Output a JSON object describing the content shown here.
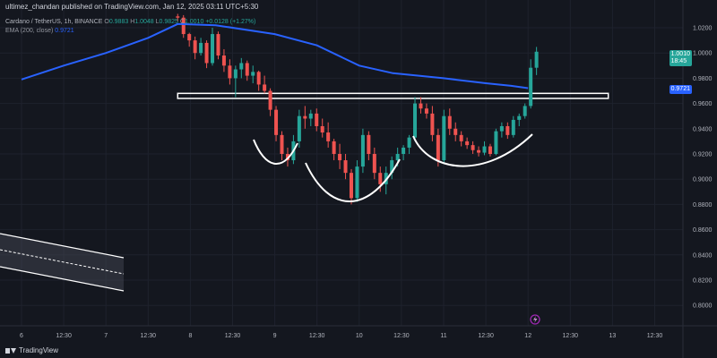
{
  "header": {
    "credit": "ultimez_chandan published on TradingView.com, Jan 12, 2025 03:11 UTC+5:30",
    "symbol_line": "Cardano / TetherUS, 1h, BINANCE",
    "ohlc": [
      {
        "k": "O",
        "v": "0.9883"
      },
      {
        "k": "H",
        "v": "1.0048"
      },
      {
        "k": "L",
        "v": "0.9825"
      },
      {
        "k": "C",
        "v": "1.0010"
      },
      {
        "k": "",
        "v": "+0.0128 (+1.27%)"
      }
    ],
    "ema_label": "EMA (200, close)",
    "ema_value": "0.9721"
  },
  "footer": {
    "brand": "TradingView"
  },
  "price_tags": {
    "last_price": "1.0010",
    "countdown": "18:45",
    "ema_price": "0.9721"
  },
  "colors": {
    "background": "#14171f",
    "up": "#26a69a",
    "down": "#ef5350",
    "ema": "#2962ff",
    "annotation": "#ffffff"
  },
  "icons": [
    "tradingview-logo-icon",
    "lightning-event-icon"
  ],
  "chart_data": {
    "type": "candlestick",
    "x_tick_labels": [
      "6",
      "12:30",
      "7",
      "12:30",
      "8",
      "12:30",
      "9",
      "12:30",
      "10",
      "12:30",
      "11",
      "12:30",
      "12",
      "12:30",
      "13",
      "12:30"
    ],
    "y_tick_labels": [
      "1.0200",
      "1.0000",
      "0.9800",
      "0.9600",
      "0.9400",
      "0.9200",
      "0.9000",
      "0.8800",
      "0.8600",
      "0.8400",
      "0.8200",
      "0.8000"
    ],
    "ylim": [
      0.795,
      1.033
    ],
    "grid": true,
    "candles": [
      [
        1.029,
        1.031,
        1.025,
        1.028
      ],
      [
        1.028,
        1.03,
        1.012,
        1.015
      ],
      [
        1.015,
        1.016,
        1.005,
        1.01
      ],
      [
        1.01,
        1.013,
        0.995,
        1.0
      ],
      [
        1.0,
        1.012,
        0.998,
        1.008
      ],
      [
        1.008,
        1.01,
        0.988,
        0.992
      ],
      [
        0.992,
        1.02,
        0.99,
        1.015
      ],
      [
        1.015,
        1.017,
        0.995,
        0.998
      ],
      [
        0.998,
        1.003,
        0.985,
        0.99
      ],
      [
        0.99,
        0.995,
        0.975,
        0.98
      ],
      [
        0.98,
        0.99,
        0.965,
        0.987
      ],
      [
        0.987,
        0.996,
        0.98,
        0.992
      ],
      [
        0.992,
        0.994,
        0.978,
        0.982
      ],
      [
        0.982,
        0.99,
        0.976,
        0.985
      ],
      [
        0.985,
        0.986,
        0.97,
        0.975
      ],
      [
        0.975,
        0.982,
        0.968,
        0.97
      ],
      [
        0.97,
        0.972,
        0.95,
        0.955
      ],
      [
        0.955,
        0.958,
        0.93,
        0.935
      ],
      [
        0.935,
        0.938,
        0.915,
        0.92
      ],
      [
        0.92,
        0.925,
        0.91,
        0.915
      ],
      [
        0.915,
        0.935,
        0.912,
        0.93
      ],
      [
        0.93,
        0.955,
        0.925,
        0.95
      ],
      [
        0.95,
        0.958,
        0.94,
        0.948
      ],
      [
        0.948,
        0.955,
        0.942,
        0.952
      ],
      [
        0.952,
        0.956,
        0.938,
        0.942
      ],
      [
        0.942,
        0.948,
        0.933,
        0.937
      ],
      [
        0.937,
        0.945,
        0.925,
        0.93
      ],
      [
        0.93,
        0.932,
        0.915,
        0.92
      ],
      [
        0.92,
        0.928,
        0.908,
        0.915
      ],
      [
        0.915,
        0.92,
        0.9,
        0.905
      ],
      [
        0.905,
        0.908,
        0.88,
        0.885
      ],
      [
        0.885,
        0.915,
        0.882,
        0.91
      ],
      [
        0.91,
        0.94,
        0.905,
        0.935
      ],
      [
        0.935,
        0.938,
        0.915,
        0.92
      ],
      [
        0.92,
        0.925,
        0.9,
        0.905
      ],
      [
        0.905,
        0.91,
        0.89,
        0.896
      ],
      [
        0.896,
        0.91,
        0.888,
        0.905
      ],
      [
        0.905,
        0.918,
        0.9,
        0.915
      ],
      [
        0.915,
        0.925,
        0.91,
        0.92
      ],
      [
        0.92,
        0.927,
        0.915,
        0.925
      ],
      [
        0.925,
        0.935,
        0.92,
        0.933
      ],
      [
        0.933,
        0.965,
        0.93,
        0.96
      ],
      [
        0.96,
        0.965,
        0.952,
        0.956
      ],
      [
        0.956,
        0.96,
        0.948,
        0.952
      ],
      [
        0.952,
        0.958,
        0.93,
        0.935
      ],
      [
        0.935,
        0.94,
        0.91,
        0.915
      ],
      [
        0.915,
        0.955,
        0.912,
        0.95
      ],
      [
        0.95,
        0.956,
        0.935,
        0.94
      ],
      [
        0.94,
        0.945,
        0.93,
        0.935
      ],
      [
        0.935,
        0.938,
        0.926,
        0.93
      ],
      [
        0.93,
        0.933,
        0.924,
        0.927
      ],
      [
        0.927,
        0.93,
        0.92,
        0.923
      ],
      [
        0.923,
        0.926,
        0.918,
        0.921
      ],
      [
        0.921,
        0.93,
        0.919,
        0.926
      ],
      [
        0.926,
        0.928,
        0.918,
        0.92
      ],
      [
        0.92,
        0.94,
        0.919,
        0.938
      ],
      [
        0.938,
        0.945,
        0.933,
        0.942
      ],
      [
        0.942,
        0.945,
        0.932,
        0.935
      ],
      [
        0.935,
        0.95,
        0.933,
        0.947
      ],
      [
        0.947,
        0.952,
        0.942,
        0.95
      ],
      [
        0.95,
        0.96,
        0.948,
        0.958
      ],
      [
        0.958,
        0.995,
        0.956,
        0.9883
      ],
      [
        0.9883,
        1.0048,
        0.9825,
        1.001
      ]
    ],
    "ema_200": [
      [
        6,
        0.979
      ],
      [
        6.5,
        0.99
      ],
      [
        7,
        1.0
      ],
      [
        7.5,
        1.012
      ],
      [
        7.85,
        1.023
      ],
      [
        8.3,
        1.022
      ],
      [
        9,
        1.015
      ],
      [
        9.5,
        1.006
      ],
      [
        10,
        0.99
      ],
      [
        10.4,
        0.984
      ],
      [
        11,
        0.98
      ],
      [
        11.5,
        0.976
      ],
      [
        11.8,
        0.974
      ],
      [
        12,
        0.9721
      ]
    ],
    "neckline_zone": {
      "x_start": 7.85,
      "x_end": 12.95,
      "y_low": 0.964,
      "y_high": 0.968
    },
    "pattern": "inverse head and shoulders"
  }
}
